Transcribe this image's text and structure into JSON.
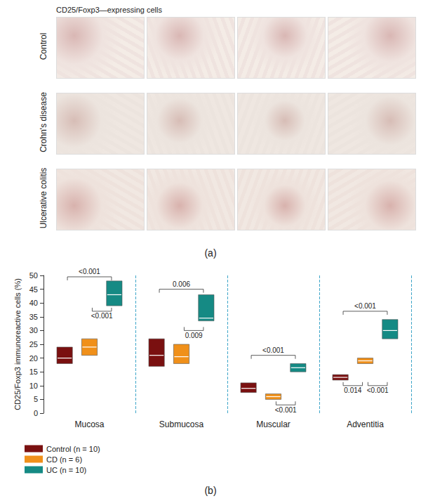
{
  "panel_a": {
    "title": "CD25/Foxp3—expressing cells",
    "rows": [
      "Control",
      "Crohn's disease",
      "Ulcerative colitis"
    ],
    "label": "(a)"
  },
  "chart_data": {
    "type": "box",
    "ylabel": "CD25/Foxp3 immunoreactive cells (%)",
    "categories": [
      "Mucosa",
      "Submucosa",
      "Muscular",
      "Adventitia"
    ],
    "ylim": [
      0,
      50
    ],
    "yticks": [
      0,
      5,
      10,
      15,
      20,
      25,
      30,
      35,
      40,
      45,
      50
    ],
    "grid": false,
    "legend": "lower left",
    "series": [
      {
        "name": "Control (n = 10)",
        "color": "#7a1010",
        "low": [
          18,
          17,
          7.5,
          12
        ],
        "median": [
          20,
          21,
          9,
          13
        ],
        "high": [
          24,
          27,
          11,
          14
        ]
      },
      {
        "name": "CD (n = 6)",
        "color": "#f0901a",
        "low": [
          21,
          18,
          5,
          18
        ],
        "median": [
          24,
          20.5,
          6,
          19
        ],
        "high": [
          27,
          25,
          7,
          20
        ]
      },
      {
        "name": "UC (n = 10)",
        "color": "#158a84",
        "low": [
          39,
          33.5,
          15,
          27
        ],
        "median": [
          43,
          34.5,
          16.5,
          30
        ],
        "high": [
          48,
          43,
          18,
          34
        ]
      }
    ],
    "annotations": [
      {
        "category": "Mucosa",
        "from": "Control (n = 10)",
        "to": "UC (n = 10)",
        "y": 49.5,
        "label": "<0.001",
        "position": "above"
      },
      {
        "category": "Mucosa",
        "from": "CD (n = 6)",
        "to": "UC (n = 10)",
        "y": 37,
        "label": "<0.001",
        "position": "below"
      },
      {
        "category": "Submucosa",
        "from": "Control (n = 10)",
        "to": "UC (n = 10)",
        "y": 45,
        "label": "0.006",
        "position": "above"
      },
      {
        "category": "Submucosa",
        "from": "CD (n = 6)",
        "to": "UC (n = 10)",
        "y": 30,
        "label": "0.009",
        "position": "below"
      },
      {
        "category": "Muscular",
        "from": "Control (n = 10)",
        "to": "UC (n = 10)",
        "y": 21,
        "label": "<0.001",
        "position": "above"
      },
      {
        "category": "Muscular",
        "from": "CD (n = 6)",
        "to": "UC (n = 10)",
        "y": 3,
        "label": "<0.001",
        "position": "below"
      },
      {
        "category": "Adventitia",
        "from": "Control (n = 10)",
        "to": "UC (n = 10)",
        "y": 37,
        "label": "<0.001",
        "position": "above"
      },
      {
        "category": "Adventitia",
        "from": "Control (n = 10)",
        "to": "CD (n = 6)",
        "y": 10,
        "label": "0.014",
        "position": "below"
      },
      {
        "category": "Adventitia",
        "from": "CD (n = 6)",
        "to": "UC (n = 10)",
        "y": 10,
        "label": "<0.001",
        "position": "below"
      }
    ],
    "panel_label": "(b)"
  }
}
